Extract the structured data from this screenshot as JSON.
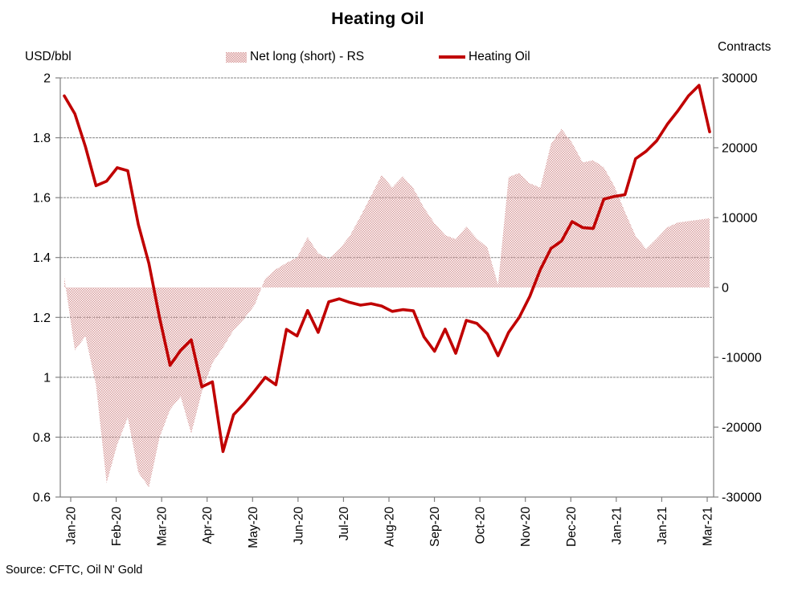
{
  "title": "Heating Oil",
  "legend": [
    {
      "label": "Net long (short) - RS",
      "swatch": "pink-pattern-area"
    },
    {
      "label": "Heating Oil",
      "swatch": "red-line"
    }
  ],
  "left_axis": {
    "label": "USD/bbl",
    "tick_labels": [
      "2",
      "1.8",
      "1.6",
      "1.4",
      "1.2",
      "1",
      "0.8",
      "0.6"
    ],
    "min": 0.6,
    "max": 2.0
  },
  "right_axis": {
    "label": "Contracts",
    "tick_labels": [
      "30000",
      "20000",
      "10000",
      "0",
      "-10000",
      "-20000",
      "-30000"
    ],
    "min": -30000,
    "max": 30000
  },
  "source": "Source: CFTC, Oil N' Gold",
  "colors": {
    "line_red": "#c00000",
    "area_pink_dot": "#d89c9c",
    "area_pink_bg": "#faf1f1",
    "gridline": "#848484",
    "axis": "#808080",
    "text": "#000000",
    "background": "#ffffff"
  },
  "chart_data": {
    "type": "line+area",
    "title": "Heating Oil",
    "x_tick_labels": [
      "Jan-20",
      "Feb-20",
      "Mar-20",
      "Apr-20",
      "May-20",
      "Jun-20",
      "Jul-20",
      "Aug-20",
      "Sep-20",
      "Oct-20",
      "Nov-20",
      "Dec-20",
      "Jan-21",
      "Jan-21",
      "Mar-21"
    ],
    "left_ylim": [
      0.6,
      2.0
    ],
    "right_ylim": [
      -30000,
      30000
    ],
    "grid": "horizontal-dashed",
    "legend_position": "top",
    "series": [
      {
        "name": "Net long (short) - RS",
        "type": "area",
        "axis": "right",
        "unit": "contracts",
        "values": [
          1500,
          -9000,
          -7000,
          -14000,
          -28000,
          -22500,
          -18600,
          -26500,
          -28600,
          -21500,
          -17500,
          -15600,
          -20900,
          -15000,
          -10800,
          -8600,
          -6100,
          -4500,
          -2500,
          1300,
          2600,
          3500,
          4300,
          7200,
          4900,
          4100,
          5500,
          7400,
          10200,
          13100,
          16100,
          14300,
          15900,
          14200,
          11400,
          9200,
          7500,
          6900,
          8700,
          7000,
          5700,
          400,
          15800,
          16400,
          14900,
          14300,
          20500,
          22700,
          20700,
          17900,
          18200,
          17200,
          14500,
          10800,
          7400,
          5500,
          7000,
          8600,
          9300,
          9500,
          9700,
          9900
        ]
      },
      {
        "name": "Heating Oil",
        "type": "line",
        "axis": "left",
        "unit": "USD/bbl",
        "values": [
          1.94,
          1.88,
          1.77,
          1.64,
          1.655,
          1.7,
          1.69,
          1.51,
          1.38,
          1.2,
          1.04,
          1.09,
          1.125,
          0.968,
          0.985,
          0.752,
          0.875,
          0.912,
          0.955,
          1.0,
          0.975,
          1.16,
          1.138,
          1.223,
          1.15,
          1.252,
          1.262,
          1.25,
          1.241,
          1.246,
          1.238,
          1.22,
          1.226,
          1.222,
          1.135,
          1.087,
          1.161,
          1.08,
          1.19,
          1.18,
          1.145,
          1.072,
          1.15,
          1.2,
          1.27,
          1.36,
          1.43,
          1.455,
          1.52,
          1.5,
          1.497,
          1.595,
          1.604,
          1.61,
          1.73,
          1.755,
          1.79,
          1.845,
          1.89,
          1.94,
          1.975,
          1.82
        ]
      }
    ]
  }
}
